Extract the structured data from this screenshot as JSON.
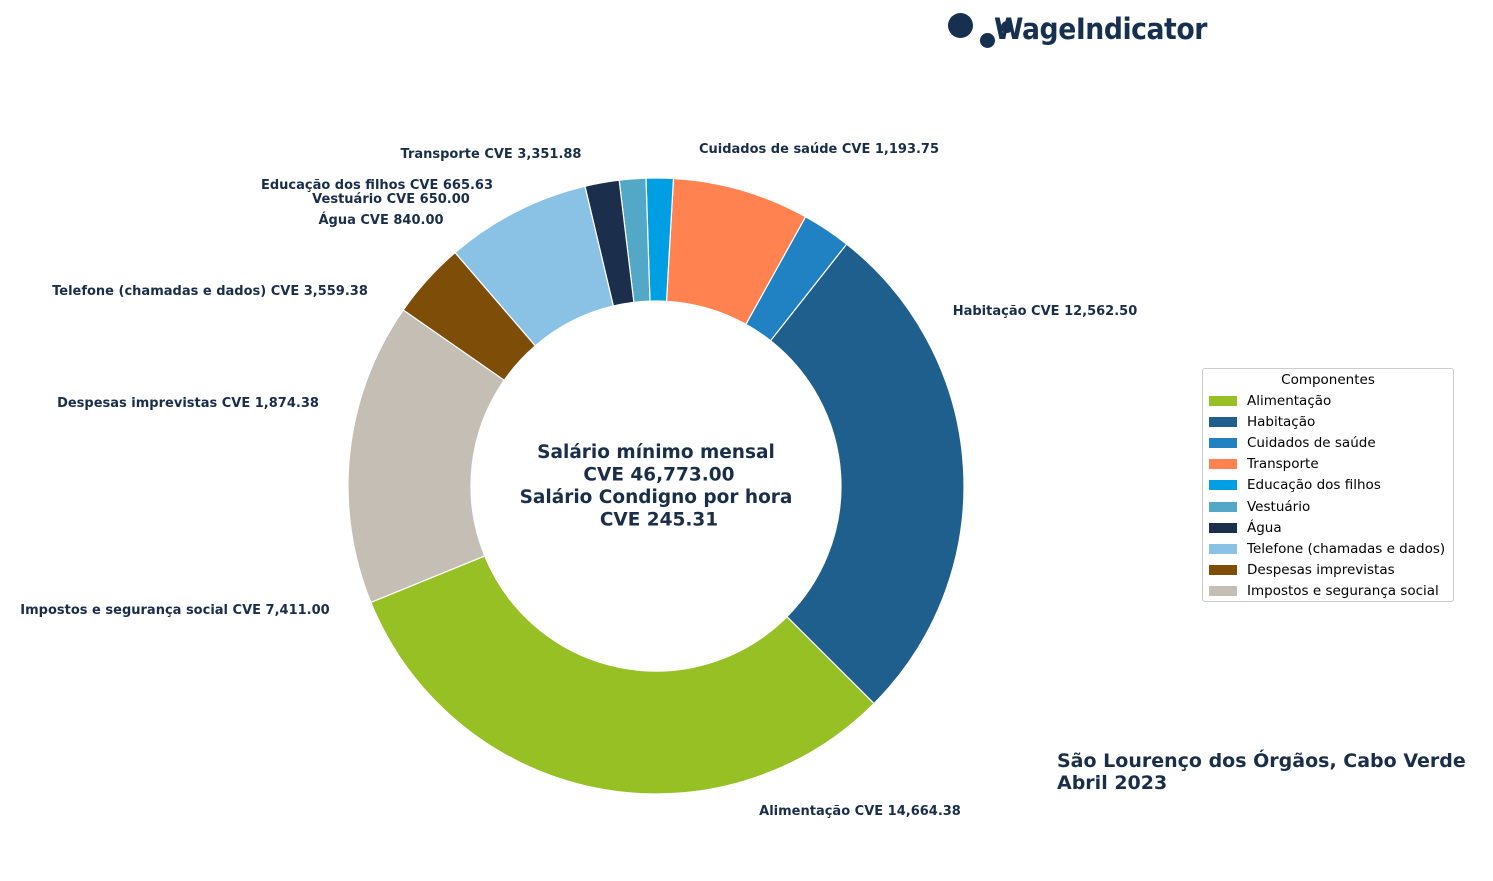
{
  "brand": {
    "name": "WageIndicator"
  },
  "chart_data": {
    "type": "pie",
    "style": "donut",
    "currency": "CVE",
    "center_text": [
      "Salário mínimo mensal",
      "CVE 46,773.00",
      "Salário Condigno por hora",
      "CVE 245.31"
    ],
    "legend_title": "Componentes",
    "legend_placement": "right",
    "slices": [
      {
        "name": "Alimentação",
        "value": 14664.38,
        "label": "Alimentação CVE 14,664.38",
        "color": "#97c024"
      },
      {
        "name": "Habitação",
        "value": 12562.5,
        "label": "Habitação CVE 12,562.50",
        "color": "#1f5f8e"
      },
      {
        "name": "Cuidados de saúde",
        "value": 1193.75,
        "label": "Cuidados de saúde CVE 1,193.75",
        "color": "#2081c3"
      },
      {
        "name": "Transporte",
        "value": 3351.88,
        "label": "Transporte CVE 3,351.88",
        "color": "#ff8250"
      },
      {
        "name": "Educação dos filhos",
        "value": 665.63,
        "label": "Educação dos filhos CVE 665.63",
        "color": "#009fe3"
      },
      {
        "name": "Vestuário",
        "value": 650.0,
        "label": "Vestuário CVE 650.00",
        "color": "#53a8c8"
      },
      {
        "name": "Água",
        "value": 840.0,
        "label": "Água CVE 840.00",
        "color": "#1b2e4b"
      },
      {
        "name": "Telefone (chamadas e dados)",
        "value": 3559.38,
        "label": "Telefone (chamadas e dados) CVE 3,559.38",
        "color": "#8ac2e5"
      },
      {
        "name": "Despesas imprevistas",
        "value": 1874.38,
        "label": "Despesas imprevistas CVE 1,874.38",
        "color": "#7e4e08"
      },
      {
        "name": "Impostos e segurança social",
        "value": 7411.0,
        "label": "Impostos e segurança social CVE 7,411.00",
        "color": "#c4beb4"
      }
    ]
  },
  "location": {
    "line1": "São Lourenço dos Órgãos, Cabo Verde",
    "line2": "Abril 2023"
  }
}
